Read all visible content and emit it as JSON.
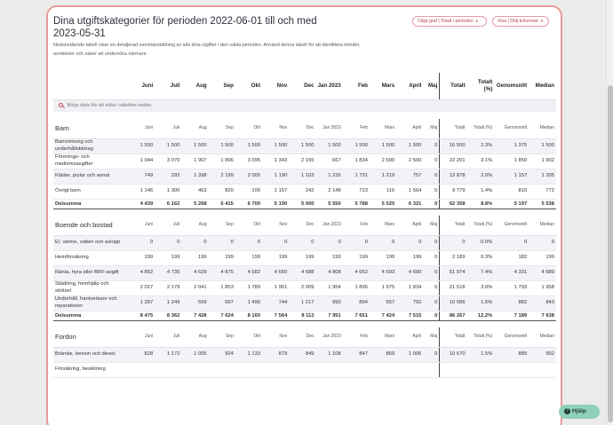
{
  "header": {
    "title": "Dina utgiftskategorier för perioden 2022-06-01 till och med 2023-05-31",
    "description": "Nedanstående tabell visar en detaljerad sammanställning av alla dina utgifter i den valda perioden. Använd denna tabell för att identifiera trender, avvikelser och saker att undersöka närmare.",
    "graph_button": "Välja graf | Totalt i perioden",
    "columns_button": "Visa | Dölj kolumner"
  },
  "columns": [
    "Juni",
    "Juli",
    "Aug",
    "Sep",
    "Okt",
    "Nov",
    "Dec",
    "Jan 2023",
    "Feb",
    "Mars",
    "April",
    "Maj",
    "Totalt",
    "Totalt (%)",
    "Genomsnitt",
    "Median"
  ],
  "search": {
    "placeholder": "Börja skriv för att söka i tabellen nedan"
  },
  "categories": [
    {
      "name": "Barn",
      "rows": [
        {
          "label": "Barnomsorg och underhållsbidrag",
          "values": [
            "1 500",
            "1 500",
            "1 500",
            "1 500",
            "1 500",
            "1 500",
            "1 500",
            "1 500",
            "1 500",
            "1 500",
            "1 500",
            "0",
            "16 500",
            "2.3%",
            "1 375",
            "1 500"
          ]
        },
        {
          "label": "Förenings- och medlemsavgifter",
          "values": [
            "1 044",
            "3 070",
            "1 907",
            "1 896",
            "3 095",
            "1 343",
            "2 155",
            "667",
            "1 834",
            "2 690",
            "2 500",
            "0",
            "22 201",
            "3.1%",
            "1 850",
            "1 902"
          ]
        },
        {
          "label": "Kläder, prylar och annat",
          "values": [
            "749",
            "292",
            "1 398",
            "2 199",
            "2 005",
            "1 190",
            "1 103",
            "1 235",
            "1 731",
            "1 219",
            "757",
            "0",
            "13 878",
            "2.0%",
            "1 157",
            "1 205"
          ]
        },
        {
          "label": "Övrigt barn",
          "values": [
            "1 146",
            "1 300",
            "463",
            "820",
            "100",
            "1 157",
            "242",
            "2 148",
            "723",
            "116",
            "1 564",
            "0",
            "9 779",
            "1.4%",
            "815",
            "772"
          ]
        }
      ],
      "sum": {
        "label": "Delsumma",
        "values": [
          "4 439",
          "6 162",
          "5 268",
          "6 415",
          "6 700",
          "5 190",
          "5 000",
          "5 550",
          "5 788",
          "5 525",
          "6 321",
          "0",
          "62 358",
          "8.8%",
          "5 197",
          "5 538"
        ]
      }
    },
    {
      "name": "Boende och bostad",
      "rows": [
        {
          "label": "El, värme, vatten och avlopp",
          "values": [
            "0",
            "0",
            "0",
            "0",
            "0",
            "0",
            "0",
            "0",
            "0",
            "0",
            "0",
            "0",
            "0",
            "0.0%",
            "0",
            "0"
          ]
        },
        {
          "label": "Hemförsäkring",
          "values": [
            "199",
            "199",
            "199",
            "199",
            "199",
            "199",
            "199",
            "199",
            "199",
            "199",
            "199",
            "0",
            "2 189",
            "0.3%",
            "182",
            "199"
          ]
        },
        {
          "label": "Ränta, hyra eller BRF-avgift",
          "values": [
            "4 852",
            "4 735",
            "4 629",
            "4 875",
            "4 682",
            "4 660",
            "4 688",
            "4 808",
            "4 662",
            "4 693",
            "4 690",
            "0",
            "51 974",
            "7.4%",
            "4 331",
            "4 689"
          ]
        },
        {
          "label": "Städning, hemhjälp och skötsel",
          "values": [
            "2 027",
            "2 179",
            "2 041",
            "1 853",
            "1 789",
            "1 961",
            "2 009",
            "1 954",
            "1 896",
            "1 975",
            "1 834",
            "0",
            "21 518",
            "3.0%",
            "1 793",
            "1 958"
          ]
        },
        {
          "label": "Underhåll, hantverkare och reparationer",
          "values": [
            "1 397",
            "1 249",
            "559",
            "697",
            "1 490",
            "744",
            "1 217",
            "990",
            "894",
            "557",
            "792",
            "0",
            "10 586",
            "1.5%",
            "882",
            "843"
          ]
        }
      ],
      "sum": {
        "label": "Delsumma",
        "values": [
          "8 475",
          "8 362",
          "7 428",
          "7 624",
          "8 160",
          "7 564",
          "8 113",
          "7 951",
          "7 651",
          "7 424",
          "7 515",
          "0",
          "86 267",
          "12.2%",
          "7 189",
          "7 638"
        ]
      }
    },
    {
      "name": "Fordon",
      "rows": [
        {
          "label": "Bränsle, bensin och diesel",
          "values": [
            "828",
            "1 172",
            "1 055",
            "924",
            "1 133",
            "879",
            "849",
            "1 108",
            "847",
            "869",
            "1 006",
            "0",
            "10 670",
            "1.5%",
            "889",
            "902"
          ]
        },
        {
          "label": "Försäkring, besiktning",
          "values": [
            "",
            "",
            "",
            "",
            "",
            "",
            "",
            "",
            "",
            "",
            "",
            "",
            "",
            "",
            "",
            ""
          ]
        }
      ],
      "sum": null
    }
  ],
  "help": {
    "label": "Hjälp"
  }
}
